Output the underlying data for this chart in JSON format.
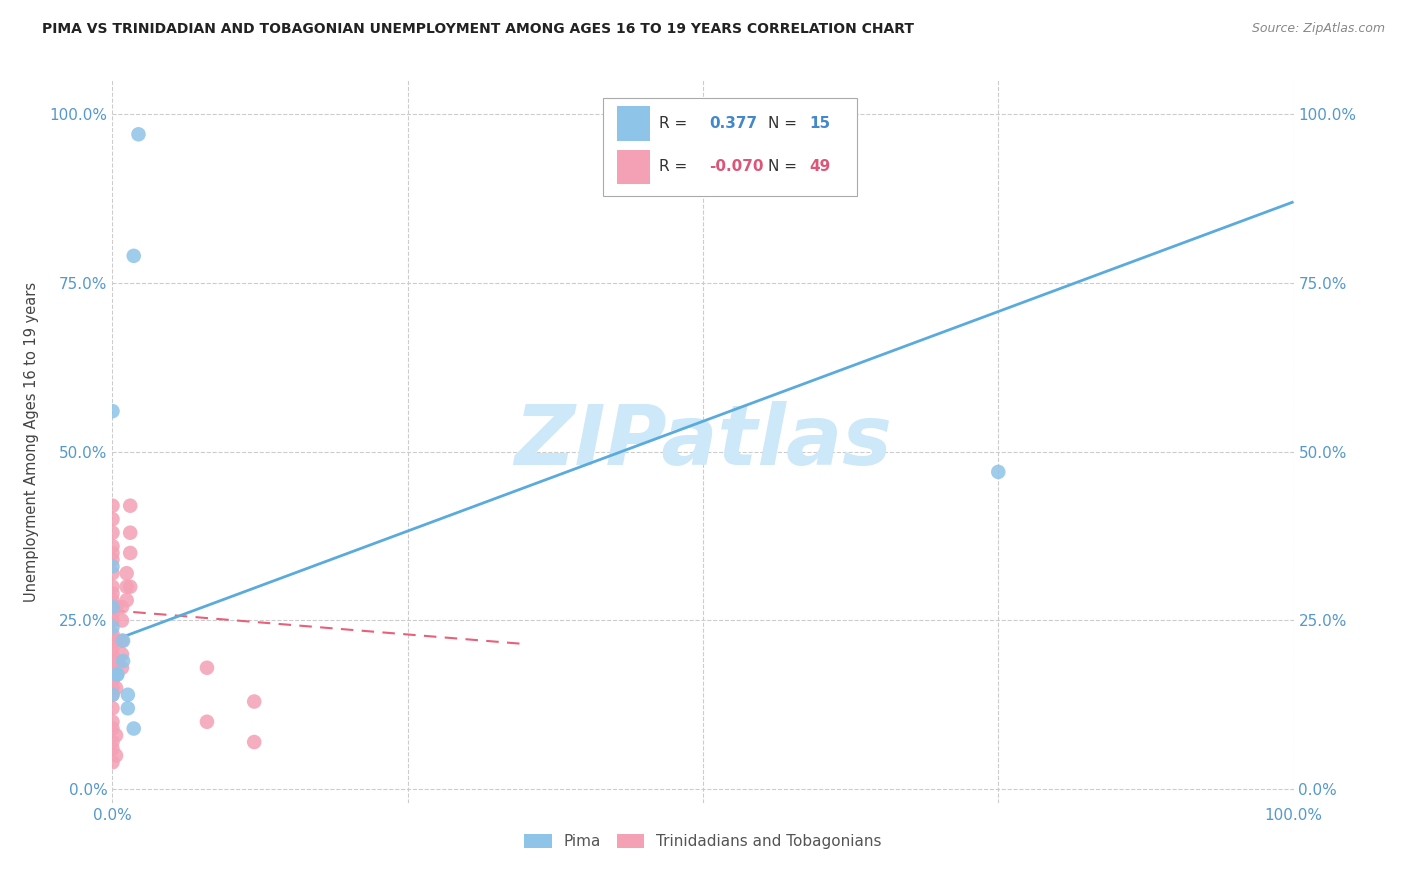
{
  "title": "PIMA VS TRINIDADIAN AND TOBAGONIAN UNEMPLOYMENT AMONG AGES 16 TO 19 YEARS CORRELATION CHART",
  "source": "Source: ZipAtlas.com",
  "ylabel": "Unemployment Among Ages 16 to 19 years",
  "legend_label_1": "Pima",
  "legend_label_2": "Trinidadians and Tobagonians",
  "R1": 0.377,
  "N1": 15,
  "R2": -0.07,
  "N2": 49,
  "color_pima": "#8ec4e8",
  "color_trini": "#f4a0b5",
  "color_line1": "#5aabdc",
  "color_line2": "#e8607a",
  "watermark_color": "#cde8f8",
  "xlim": [
    0.0,
    1.0
  ],
  "ylim": [
    -0.02,
    1.05
  ],
  "pima_x": [
    0.022,
    0.018,
    0.0,
    0.0,
    0.0,
    0.0,
    0.009,
    0.009,
    0.004,
    0.013,
    0.013,
    0.018,
    0.75,
    0.004,
    0.0
  ],
  "pima_y": [
    0.97,
    0.79,
    0.56,
    0.33,
    0.27,
    0.24,
    0.22,
    0.19,
    0.17,
    0.14,
    0.12,
    0.09,
    0.47,
    0.17,
    0.14
  ],
  "trini_x": [
    0.0,
    0.0,
    0.0,
    0.0,
    0.0,
    0.0,
    0.0,
    0.0,
    0.0,
    0.0,
    0.0,
    0.0,
    0.0,
    0.0,
    0.0,
    0.0,
    0.0,
    0.0,
    0.0,
    0.0,
    0.0,
    0.0,
    0.0,
    0.0,
    0.0,
    0.0,
    0.0,
    0.0,
    0.008,
    0.008,
    0.008,
    0.008,
    0.008,
    0.012,
    0.012,
    0.012,
    0.015,
    0.015,
    0.015,
    0.015,
    0.08,
    0.08,
    0.12,
    0.12,
    0.003,
    0.003,
    0.003,
    0.003,
    0.003
  ],
  "trini_y": [
    0.42,
    0.4,
    0.38,
    0.36,
    0.35,
    0.34,
    0.32,
    0.3,
    0.29,
    0.28,
    0.26,
    0.25,
    0.23,
    0.22,
    0.21,
    0.2,
    0.19,
    0.18,
    0.17,
    0.16,
    0.15,
    0.14,
    0.12,
    0.1,
    0.09,
    0.07,
    0.06,
    0.04,
    0.27,
    0.25,
    0.22,
    0.2,
    0.18,
    0.32,
    0.3,
    0.28,
    0.42,
    0.38,
    0.35,
    0.3,
    0.18,
    0.1,
    0.13,
    0.07,
    0.27,
    0.22,
    0.15,
    0.08,
    0.05
  ],
  "pima_line_x0": 0.0,
  "pima_line_y0": 0.22,
  "pima_line_x1": 1.0,
  "pima_line_y1": 0.87,
  "trini_line_x0": 0.0,
  "trini_line_y0": 0.265,
  "trini_line_x1": 0.35,
  "trini_line_y1": 0.215,
  "yticks": [
    0.0,
    0.25,
    0.5,
    0.75,
    1.0
  ],
  "ytick_labels": [
    "0.0%",
    "25.0%",
    "50.0%",
    "75.0%",
    "100.0%"
  ],
  "xticks": [
    0.0,
    0.25,
    0.5,
    0.75,
    1.0
  ],
  "xtick_labels": [
    "0.0%",
    "",
    "",
    "",
    "100.0%"
  ]
}
